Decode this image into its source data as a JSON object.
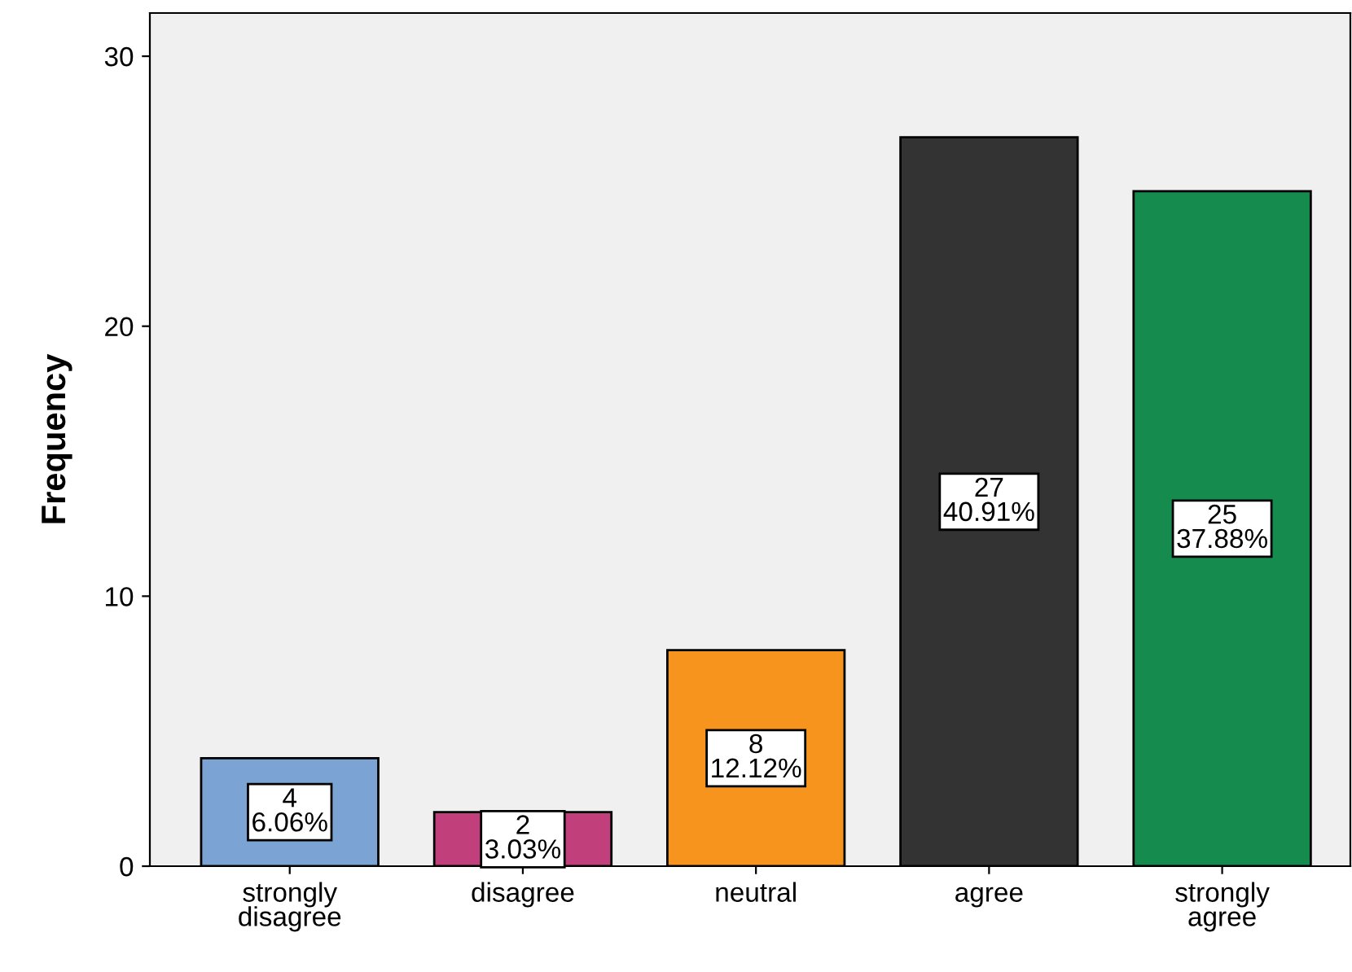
{
  "chart_data": {
    "type": "bar",
    "ylabel": "Frequency",
    "categories": [
      "strongly\ndisagree",
      "disagree",
      "neutral",
      "agree",
      "strongly\nagree"
    ],
    "values": [
      4,
      2,
      8,
      27,
      25
    ],
    "colors": [
      "#7ba4d4",
      "#c1407c",
      "#f7941d",
      "#333333",
      "#158c4e"
    ],
    "value_labels": [
      "4\n6.06%",
      "2\n3.03%",
      "8\n12.12%",
      "27\n40.91%",
      "25\n37.88%"
    ],
    "ylim": [
      0,
      31.6
    ],
    "yticks": [
      0,
      10,
      20,
      30
    ],
    "grid": false,
    "legend": false
  }
}
